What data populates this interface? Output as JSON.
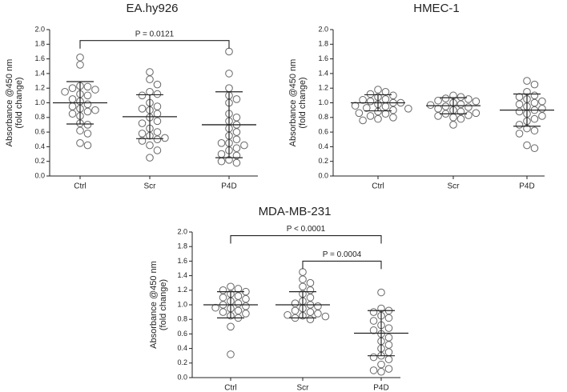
{
  "chart_data": [
    {
      "type": "dotplot",
      "title": "EA.hy926",
      "ylabel": [
        "Absorbance @450 nm",
        "(fold change)"
      ],
      "categories": [
        "Ctrl",
        "Scr",
        "P4D"
      ],
      "points": [
        [
          1.62,
          1.52,
          1.23,
          1.22,
          1.2,
          1.18,
          1.15,
          1.12,
          1.1,
          1.05,
          1.02,
          0.98,
          0.95,
          0.92,
          0.9,
          0.88,
          0.85,
          0.82,
          0.72,
          0.7,
          0.62,
          0.58,
          0.45,
          0.42
        ],
        [
          1.42,
          1.32,
          1.25,
          1.15,
          1.12,
          1.1,
          1.0,
          0.95,
          0.92,
          0.9,
          0.85,
          0.8,
          0.75,
          0.72,
          0.65,
          0.6,
          0.58,
          0.55,
          0.52,
          0.5,
          0.48,
          0.42,
          0.35,
          0.25
        ],
        [
          1.7,
          1.4,
          1.2,
          1.1,
          1.05,
          1.0,
          0.85,
          0.8,
          0.75,
          0.7,
          0.65,
          0.6,
          0.55,
          0.5,
          0.45,
          0.45,
          0.42,
          0.38,
          0.35,
          0.3,
          0.28,
          0.22,
          0.2,
          0.18
        ]
      ],
      "means": [
        1.0,
        0.81,
        0.7
      ],
      "sd": [
        0.29,
        0.3,
        0.45
      ],
      "brackets": [
        {
          "label": "P = 0.0121",
          "between": [
            "Ctrl",
            "P4D"
          ]
        }
      ],
      "ylim": [
        0,
        2
      ],
      "yticks": [
        {
          "value": 0,
          "label": "0.0"
        },
        0.2,
        0.4,
        0.6,
        0.8,
        {
          "value": 1,
          "label": "1.0"
        },
        1.2,
        1.4,
        1.6,
        1.8,
        {
          "value": 2,
          "label": "2.0"
        }
      ]
    },
    {
      "type": "dotplot",
      "title": "HMEC-1",
      "ylabel": [
        "Absorbance @450 nm",
        "(fold change)"
      ],
      "categories": [
        "Ctrl",
        "Scr",
        "P4D"
      ],
      "points": [
        [
          1.18,
          1.15,
          1.12,
          1.1,
          1.08,
          1.05,
          1.04,
          1.02,
          1.0,
          1.0,
          0.98,
          0.96,
          0.95,
          0.93,
          0.92,
          0.9,
          0.88,
          0.86,
          0.85,
          0.82,
          0.8,
          0.78,
          0.76
        ],
        [
          1.1,
          1.08,
          1.06,
          1.05,
          1.03,
          1.02,
          1.0,
          0.98,
          0.97,
          0.95,
          0.94,
          0.92,
          0.9,
          0.88,
          0.86,
          0.85,
          0.83,
          0.82,
          0.8,
          0.78,
          0.7
        ],
        [
          1.3,
          1.25,
          1.15,
          1.1,
          1.08,
          1.05,
          1.02,
          1.0,
          0.98,
          0.95,
          0.92,
          0.9,
          0.88,
          0.85,
          0.82,
          0.78,
          0.75,
          0.7,
          0.65,
          0.62,
          0.58,
          0.42,
          0.38
        ]
      ],
      "means": [
        1.0,
        0.96,
        0.9
      ],
      "sd": [
        0.11,
        0.11,
        0.22
      ],
      "brackets": [],
      "ylim": [
        0,
        2
      ],
      "yticks": [
        {
          "value": 0,
          "label": "0.0"
        },
        0.2,
        0.4,
        0.6,
        0.8,
        {
          "value": 1,
          "label": "1.0"
        },
        1.2,
        1.4,
        1.6,
        1.8,
        {
          "value": 2,
          "label": "2.0"
        }
      ]
    },
    {
      "type": "dotplot",
      "title": "MDA-MB-231",
      "ylabel": [
        "Absorbance @450 nm",
        "(fold change)"
      ],
      "categories": [
        "Ctrl",
        "Scr",
        "P4D"
      ],
      "points": [
        [
          1.25,
          1.22,
          1.2,
          1.18,
          1.15,
          1.12,
          1.1,
          1.08,
          1.05,
          1.02,
          1.0,
          0.98,
          0.96,
          0.95,
          0.92,
          0.9,
          0.88,
          0.85,
          0.82,
          0.7,
          0.32
        ],
        [
          1.45,
          1.35,
          1.3,
          1.25,
          1.2,
          1.15,
          1.1,
          1.05,
          1.02,
          1.0,
          0.98,
          0.95,
          0.92,
          0.9,
          0.88,
          0.86,
          0.85,
          0.84,
          0.82,
          0.8
        ],
        [
          1.17,
          0.95,
          0.92,
          0.9,
          0.85,
          0.82,
          0.78,
          0.72,
          0.68,
          0.65,
          0.6,
          0.55,
          0.5,
          0.45,
          0.4,
          0.35,
          0.3,
          0.28,
          0.25,
          0.18,
          0.12,
          0.1,
          0.08
        ]
      ],
      "means": [
        1.0,
        1.0,
        0.61
      ],
      "sd": [
        0.18,
        0.18,
        0.31
      ],
      "brackets": [
        {
          "label": "P = 0.0004",
          "between": [
            "Scr",
            "P4D"
          ]
        },
        {
          "label": "P < 0.0001",
          "between": [
            "Ctrl",
            "P4D"
          ]
        }
      ],
      "ylim": [
        0,
        2
      ],
      "yticks": [
        {
          "value": 0,
          "label": "0.0"
        },
        0.2,
        0.4,
        0.6,
        0.8,
        {
          "value": 1,
          "label": "1.0"
        },
        1.2,
        1.4,
        1.6,
        1.8,
        {
          "value": 2,
          "label": "2.0"
        }
      ]
    }
  ]
}
